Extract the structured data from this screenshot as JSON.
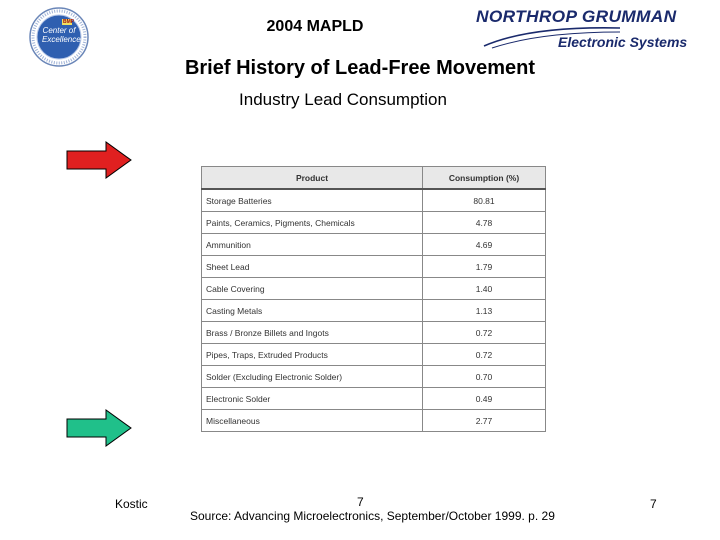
{
  "header": {
    "conference": "2004 MAPLD",
    "seal_text": "Center of Excellence",
    "seal_badge": "BMP",
    "company": "NORTHROP GRUMMAN",
    "company_division": "Electronic Systems"
  },
  "slide": {
    "title": "Brief History of Lead-Free Movement",
    "subtitle": "Industry Lead Consumption"
  },
  "table": {
    "headers": [
      "Product",
      "Consumption (%)"
    ],
    "rows": [
      {
        "product": "Storage Batteries",
        "value": "80.81"
      },
      {
        "product": "Paints, Ceramics, Pigments, Chemicals",
        "value": "4.78"
      },
      {
        "product": "Ammunition",
        "value": "4.69"
      },
      {
        "product": "Sheet Lead",
        "value": "1.79"
      },
      {
        "product": "Cable Covering",
        "value": "1.40"
      },
      {
        "product": "Casting Metals",
        "value": "1.13"
      },
      {
        "product": "Brass / Bronze Billets and Ingots",
        "value": "0.72"
      },
      {
        "product": "Pipes, Traps, Extruded Products",
        "value": "0.72"
      },
      {
        "product": "Solder (Excluding Electronic Solder)",
        "value": "0.70"
      },
      {
        "product": "Electronic Solder",
        "value": "0.49"
      },
      {
        "product": "Miscellaneous",
        "value": "2.77"
      }
    ]
  },
  "arrows": {
    "top_color": "#e02020",
    "bottom_color": "#20c08a"
  },
  "footer": {
    "author": "Kostic",
    "page_mid": "7",
    "source": "Source: Advancing Microelectronics, September/October 1999. p. 29",
    "page_right": "7"
  }
}
